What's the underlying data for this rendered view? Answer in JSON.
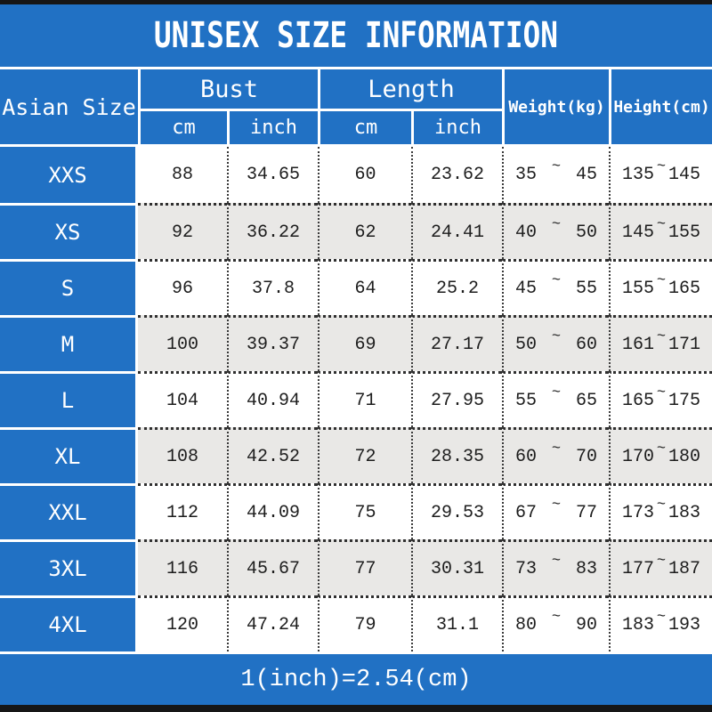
{
  "title": "UNISEX SIZE INFORMATION",
  "footer_note": "1(inch)=2.54(cm)",
  "colors": {
    "accent_blue": "#2171c4",
    "frame_bar": "#161616",
    "alt_row": "#e9e8e6",
    "data_text": "#1d1d1d"
  },
  "header": {
    "asian_size": "Asian Size",
    "bust": "Bust",
    "length": "Length",
    "cm": "cm",
    "inch": "inch",
    "weight": "Weight(kg)",
    "height": "Height(cm)",
    "tilde": "~"
  },
  "chart_data": {
    "type": "table",
    "title": "UNISEX SIZE INFORMATION",
    "column_groups": [
      {
        "label": "Asian Size",
        "sub": []
      },
      {
        "label": "Bust",
        "sub": [
          "cm",
          "inch"
        ]
      },
      {
        "label": "Length",
        "sub": [
          "cm",
          "inch"
        ]
      },
      {
        "label": "Weight(kg)",
        "sub": []
      },
      {
        "label": "Height(cm)",
        "sub": []
      }
    ],
    "columns": [
      "Asian Size",
      "Bust cm",
      "Bust inch",
      "Length cm",
      "Length inch",
      "Weight(kg) min",
      "Weight(kg) max",
      "Height(cm) min",
      "Height(cm) max"
    ],
    "rows": [
      {
        "size": "XXS",
        "bust_cm": "88",
        "bust_inch": "34.65",
        "length_cm": "60",
        "length_inch": "23.62",
        "weight_min": "35",
        "weight_max": "45",
        "height_min": "135",
        "height_max": "145"
      },
      {
        "size": "XS",
        "bust_cm": "92",
        "bust_inch": "36.22",
        "length_cm": "62",
        "length_inch": "24.41",
        "weight_min": "40",
        "weight_max": "50",
        "height_min": "145",
        "height_max": "155"
      },
      {
        "size": "S",
        "bust_cm": "96",
        "bust_inch": "37.8",
        "length_cm": "64",
        "length_inch": "25.2",
        "weight_min": "45",
        "weight_max": "55",
        "height_min": "155",
        "height_max": "165"
      },
      {
        "size": "M",
        "bust_cm": "100",
        "bust_inch": "39.37",
        "length_cm": "69",
        "length_inch": "27.17",
        "weight_min": "50",
        "weight_max": "60",
        "height_min": "161",
        "height_max": "171"
      },
      {
        "size": "L",
        "bust_cm": "104",
        "bust_inch": "40.94",
        "length_cm": "71",
        "length_inch": "27.95",
        "weight_min": "55",
        "weight_max": "65",
        "height_min": "165",
        "height_max": "175"
      },
      {
        "size": "XL",
        "bust_cm": "108",
        "bust_inch": "42.52",
        "length_cm": "72",
        "length_inch": "28.35",
        "weight_min": "60",
        "weight_max": "70",
        "height_min": "170",
        "height_max": "180"
      },
      {
        "size": "XXL",
        "bust_cm": "112",
        "bust_inch": "44.09",
        "length_cm": "75",
        "length_inch": "29.53",
        "weight_min": "67",
        "weight_max": "77",
        "height_min": "173",
        "height_max": "183"
      },
      {
        "size": "3XL",
        "bust_cm": "116",
        "bust_inch": "45.67",
        "length_cm": "77",
        "length_inch": "30.31",
        "weight_min": "73",
        "weight_max": "83",
        "height_min": "177",
        "height_max": "187"
      },
      {
        "size": "4XL",
        "bust_cm": "120",
        "bust_inch": "47.24",
        "length_cm": "79",
        "length_inch": "31.1",
        "weight_min": "80",
        "weight_max": "90",
        "height_min": "183",
        "height_max": "193"
      }
    ],
    "footnote": "1(inch)=2.54(cm)",
    "layout": {
      "size_column_style": "blue-filled",
      "alternating_rows": true,
      "row_separator": "dotted",
      "column_separator": "dotted"
    }
  }
}
